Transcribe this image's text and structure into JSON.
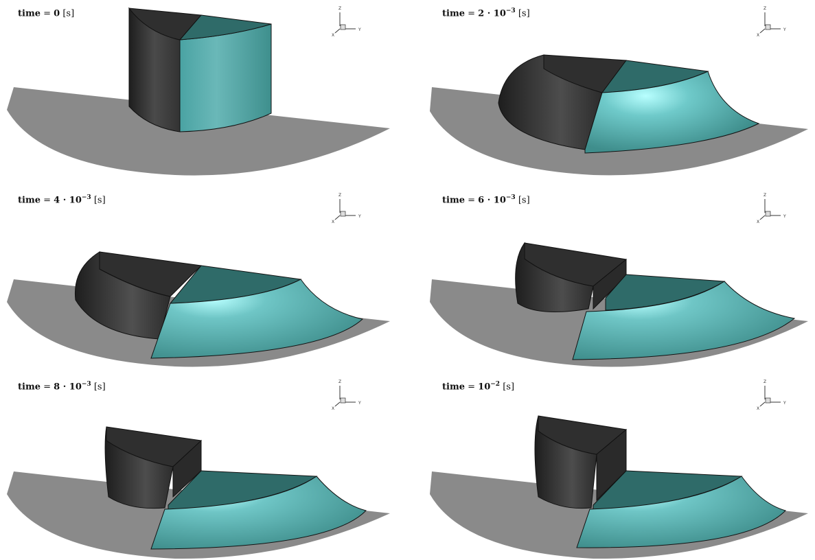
{
  "colors": {
    "ground": "#8a8a8a",
    "dark_body": "#3a3a3a",
    "dark_top": "#2f2f2f",
    "fluid_top": "#2f6b69",
    "fluid_side_light": "#a8f2f2",
    "fluid_side": "#4f9f9d",
    "outline": "#111111"
  },
  "axis_triad": {
    "z_label": "Z",
    "y_label": "Y",
    "x_label": "X"
  },
  "panels": [
    {
      "label_word": "time",
      "label_eq": "=",
      "label_value": "0",
      "label_exp": "",
      "label_unit": "[s]"
    },
    {
      "label_word": "time",
      "label_eq": "=",
      "label_value": "2 · 10",
      "label_exp": "−3",
      "label_unit": "[s]"
    },
    {
      "label_word": "time",
      "label_eq": "=",
      "label_value": "4 · 10",
      "label_exp": "−3",
      "label_unit": "[s]"
    },
    {
      "label_word": "time",
      "label_eq": "=",
      "label_value": "6 · 10",
      "label_exp": "−3",
      "label_unit": "[s]"
    },
    {
      "label_word": "time",
      "label_eq": "=",
      "label_value": "8 · 10",
      "label_exp": "−3",
      "label_unit": "[s]"
    },
    {
      "label_word": "time",
      "label_eq": "=",
      "label_value": "10",
      "label_exp": "−2",
      "label_unit": "[s]"
    }
  ]
}
